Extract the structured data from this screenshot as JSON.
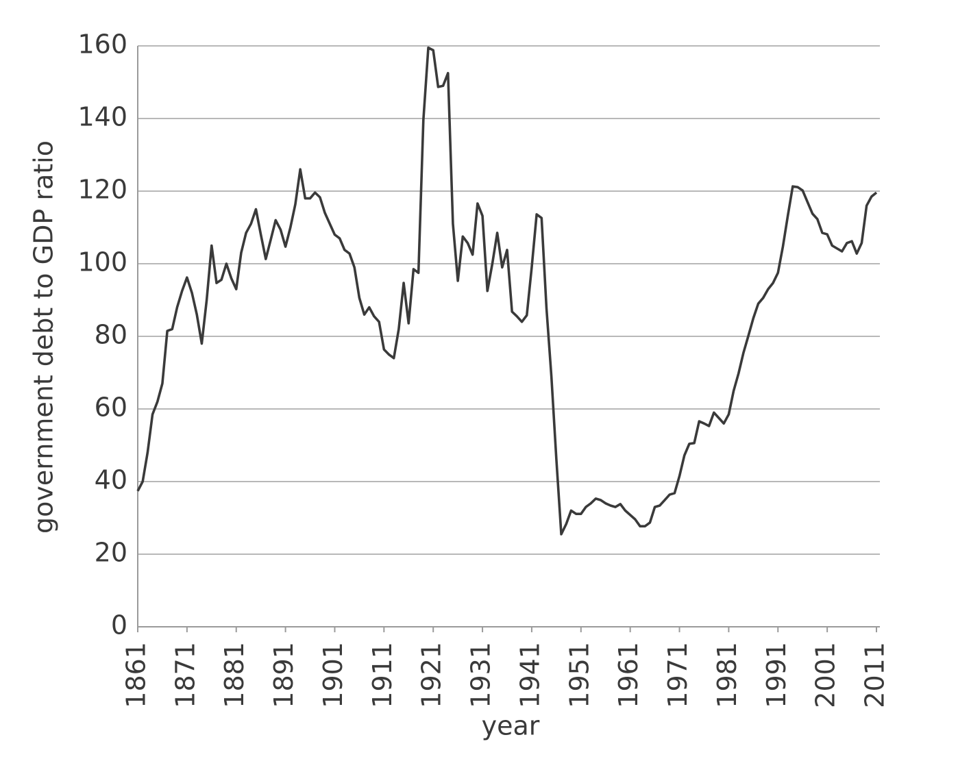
{
  "chart_data": {
    "type": "line",
    "xlabel": "year",
    "ylabel": "government debt to GDP ratio",
    "color": "#3a3a3a",
    "x": [
      1861,
      1862,
      1863,
      1864,
      1865,
      1866,
      1867,
      1868,
      1869,
      1870,
      1871,
      1872,
      1873,
      1874,
      1875,
      1876,
      1877,
      1878,
      1879,
      1880,
      1881,
      1882,
      1883,
      1884,
      1885,
      1886,
      1887,
      1888,
      1889,
      1890,
      1891,
      1892,
      1893,
      1894,
      1895,
      1896,
      1897,
      1898,
      1899,
      1900,
      1901,
      1902,
      1903,
      1904,
      1905,
      1906,
      1907,
      1908,
      1909,
      1910,
      1911,
      1912,
      1913,
      1914,
      1915,
      1916,
      1917,
      1918,
      1919,
      1920,
      1921,
      1922,
      1923,
      1924,
      1925,
      1926,
      1927,
      1928,
      1929,
      1930,
      1931,
      1932,
      1933,
      1934,
      1935,
      1936,
      1937,
      1938,
      1939,
      1940,
      1941,
      1942,
      1943,
      1944,
      1945,
      1946,
      1947,
      1948,
      1949,
      1950,
      1951,
      1952,
      1953,
      1954,
      1955,
      1956,
      1957,
      1958,
      1959,
      1960,
      1961,
      1962,
      1963,
      1964,
      1965,
      1966,
      1967,
      1968,
      1969,
      1970,
      1971,
      1972,
      1973,
      1974,
      1975,
      1976,
      1977,
      1978,
      1979,
      1980,
      1981,
      1982,
      1983,
      1984,
      1985,
      1986,
      1987,
      1988,
      1989,
      1990,
      1991,
      1992,
      1993,
      1994,
      1995,
      1996,
      1997,
      1998,
      1999,
      2000,
      2001,
      2002,
      2003,
      2004,
      2005,
      2006,
      2007,
      2008,
      2009,
      2010,
      2011
    ],
    "values": [
      37.4,
      40,
      48,
      58.5,
      62,
      67,
      81.5,
      82,
      88,
      92.5,
      96.2,
      92,
      86,
      78,
      90,
      105,
      94.7,
      95.6,
      100,
      96,
      93,
      103,
      108.5,
      111,
      115,
      108,
      101.3,
      106.6,
      112,
      109.4,
      104.7,
      110,
      116.4,
      126,
      118,
      118,
      119.6,
      118.3,
      114,
      111,
      108,
      107,
      103.8,
      102.8,
      99,
      90.6,
      86,
      88,
      85.5,
      84,
      76.4,
      75,
      74,
      82,
      94.7,
      83.6,
      98.5,
      97.5,
      139.6,
      159.5,
      158.8,
      148.7,
      149,
      152.5,
      111,
      95.3,
      107.5,
      105.7,
      102.5,
      116.6,
      113.2,
      92.5,
      100,
      108.5,
      99,
      103.8,
      86.8,
      85.5,
      84,
      85.8,
      99,
      113.6,
      112.6,
      87.7,
      68.9,
      46.2,
      25.5,
      28.3,
      32,
      31.1,
      31.1,
      33,
      34,
      35.3,
      34.9,
      34,
      33.4,
      33,
      33.8,
      32,
      30.8,
      29.6,
      27.7,
      27.7,
      28.7,
      33,
      33.4,
      34.9,
      36.4,
      36.8,
      41.5,
      47.2,
      50.4,
      50.6,
      56.6,
      56,
      55.3,
      59,
      57.5,
      56,
      58.5,
      65,
      69.8,
      75.5,
      80.2,
      85,
      89,
      90.6,
      93,
      94.7,
      97.5,
      104.7,
      113.2,
      121.3,
      121.1,
      120.2,
      117,
      113.8,
      112.3,
      108.5,
      108.1,
      105,
      104.2,
      103.4,
      105.7,
      106.2,
      102.8,
      105.7,
      116,
      118.5,
      119.6
    ],
    "xlim": [
      1861,
      2011
    ],
    "xticks": [
      1861,
      1871,
      1881,
      1891,
      1901,
      1911,
      1921,
      1931,
      1941,
      1951,
      1961,
      1971,
      1981,
      1991,
      2001,
      2011
    ],
    "ylim": [
      0,
      160
    ],
    "yticks": [
      0,
      20,
      40,
      60,
      80,
      100,
      120,
      140,
      160
    ],
    "grid": true
  }
}
